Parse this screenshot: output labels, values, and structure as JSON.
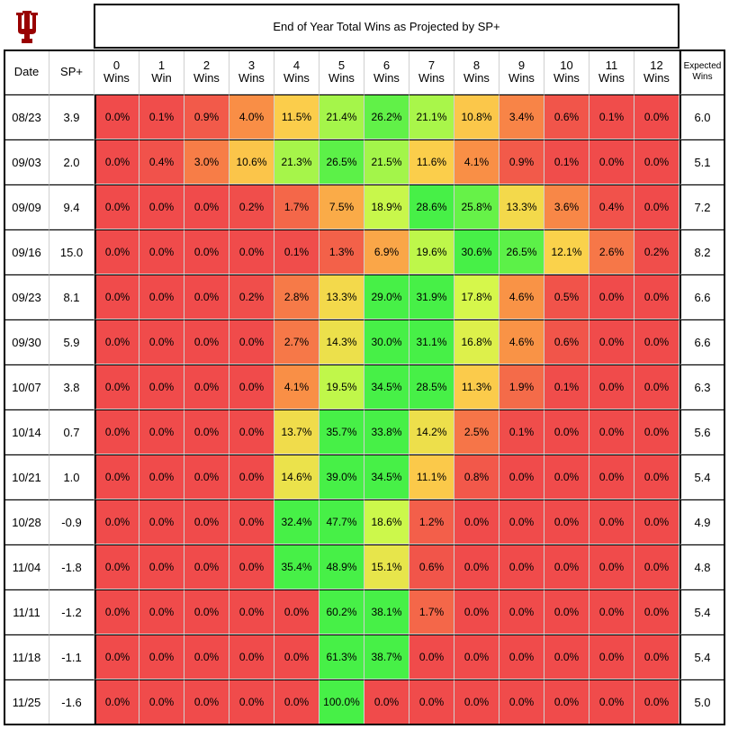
{
  "chart_data": {
    "type": "heatmap",
    "title": "End of Year Total Wins as Projected by SP+",
    "row_headers": [
      "Date",
      "SP+"
    ],
    "columns": [
      "0\nWins",
      "1\nWin",
      "2\nWins",
      "3\nWins",
      "4\nWins",
      "5\nWins",
      "6\nWins",
      "7\nWins",
      "8\nWins",
      "9\nWins",
      "10\nWins",
      "11\nWins",
      "12\nWins"
    ],
    "expected_header": "Expected\nWins",
    "rows": [
      {
        "date": "08/23",
        "sp": "3.9",
        "values": [
          0.0,
          0.1,
          0.9,
          4.0,
          11.5,
          21.4,
          26.2,
          21.1,
          10.8,
          3.4,
          0.6,
          0.1,
          0.0
        ],
        "expected": "6.0"
      },
      {
        "date": "09/03",
        "sp": "2.0",
        "values": [
          0.0,
          0.4,
          3.0,
          10.6,
          21.3,
          26.5,
          21.5,
          11.6,
          4.1,
          0.9,
          0.1,
          0.0,
          0.0
        ],
        "expected": "5.1"
      },
      {
        "date": "09/09",
        "sp": "9.4",
        "values": [
          0.0,
          0.0,
          0.0,
          0.2,
          1.7,
          7.5,
          18.9,
          28.6,
          25.8,
          13.3,
          3.6,
          0.4,
          0.0
        ],
        "expected": "7.2"
      },
      {
        "date": "09/16",
        "sp": "15.0",
        "values": [
          0.0,
          0.0,
          0.0,
          0.0,
          0.1,
          1.3,
          6.9,
          19.6,
          30.6,
          26.5,
          12.1,
          2.6,
          0.2
        ],
        "expected": "8.2"
      },
      {
        "date": "09/23",
        "sp": "8.1",
        "values": [
          0.0,
          0.0,
          0.0,
          0.2,
          2.8,
          13.3,
          29.0,
          31.9,
          17.8,
          4.6,
          0.5,
          0.0,
          0.0
        ],
        "expected": "6.6"
      },
      {
        "date": "09/30",
        "sp": "5.9",
        "values": [
          0.0,
          0.0,
          0.0,
          0.0,
          2.7,
          14.3,
          30.0,
          31.1,
          16.8,
          4.6,
          0.6,
          0.0,
          0.0
        ],
        "expected": "6.6"
      },
      {
        "date": "10/07",
        "sp": "3.8",
        "values": [
          0.0,
          0.0,
          0.0,
          0.0,
          4.1,
          19.5,
          34.5,
          28.5,
          11.3,
          1.9,
          0.1,
          0.0,
          0.0
        ],
        "expected": "6.3"
      },
      {
        "date": "10/14",
        "sp": "0.7",
        "values": [
          0.0,
          0.0,
          0.0,
          0.0,
          13.7,
          35.7,
          33.8,
          14.2,
          2.5,
          0.1,
          0.0,
          0.0,
          0.0
        ],
        "expected": "5.6"
      },
      {
        "date": "10/21",
        "sp": "1.0",
        "values": [
          0.0,
          0.0,
          0.0,
          0.0,
          14.6,
          39.0,
          34.5,
          11.1,
          0.8,
          0.0,
          0.0,
          0.0,
          0.0
        ],
        "expected": "5.4"
      },
      {
        "date": "10/28",
        "sp": "-0.9",
        "values": [
          0.0,
          0.0,
          0.0,
          0.0,
          32.4,
          47.7,
          18.6,
          1.2,
          0.0,
          0.0,
          0.0,
          0.0,
          0.0
        ],
        "expected": "4.9"
      },
      {
        "date": "11/04",
        "sp": "-1.8",
        "values": [
          0.0,
          0.0,
          0.0,
          0.0,
          35.4,
          48.9,
          15.1,
          0.6,
          0.0,
          0.0,
          0.0,
          0.0,
          0.0
        ],
        "expected": "4.8"
      },
      {
        "date": "11/11",
        "sp": "-1.2",
        "values": [
          0.0,
          0.0,
          0.0,
          0.0,
          0.0,
          60.2,
          38.1,
          1.7,
          0.0,
          0.0,
          0.0,
          0.0,
          0.0
        ],
        "expected": "5.4"
      },
      {
        "date": "11/18",
        "sp": "-1.1",
        "values": [
          0.0,
          0.0,
          0.0,
          0.0,
          0.0,
          61.3,
          38.7,
          0.0,
          0.0,
          0.0,
          0.0,
          0.0,
          0.0
        ],
        "expected": "5.4"
      },
      {
        "date": "11/25",
        "sp": "-1.6",
        "values": [
          0.0,
          0.0,
          0.0,
          0.0,
          0.0,
          100.0,
          0.0,
          0.0,
          0.0,
          0.0,
          0.0,
          0.0,
          0.0
        ],
        "expected": "5.0"
      }
    ],
    "value_suffix": "%",
    "color_scale": {
      "low": "#f04b4b",
      "mid_low": "#f98e46",
      "mid": "#fbd14b",
      "mid_high": "#d5f84b",
      "high": "#47f047"
    }
  },
  "logo": {
    "name": "university-trident-logo",
    "color": "#990000"
  }
}
